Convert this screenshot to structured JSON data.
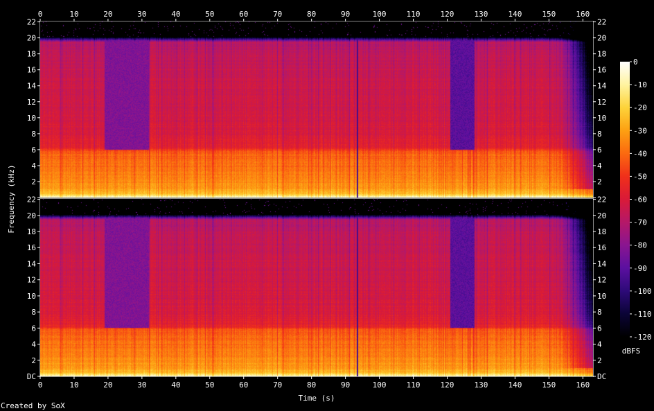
{
  "chart_data": {
    "type": "heatmap",
    "channels": 2,
    "x_axis": {
      "label": "Time (s)",
      "range": [
        0,
        163
      ],
      "ticks": [
        0,
        10,
        20,
        30,
        40,
        50,
        60,
        70,
        80,
        90,
        100,
        110,
        120,
        130,
        140,
        150,
        160
      ]
    },
    "y_axis": {
      "label": "Frequency (kHz)",
      "range": [
        0,
        22.05
      ],
      "ticks": [
        0,
        2,
        4,
        6,
        8,
        10,
        12,
        14,
        16,
        18,
        20,
        22
      ],
      "tick_labels": [
        "DC",
        "2",
        "4",
        "6",
        "8",
        "10",
        "12",
        "14",
        "16",
        "18",
        "20",
        "22"
      ]
    },
    "colorbar": {
      "label": "dBFS",
      "range": [
        -120,
        0
      ],
      "ticks": [
        0,
        -10,
        -20,
        -30,
        -40,
        -50,
        -60,
        -70,
        -80,
        -90,
        -100,
        -110,
        -120
      ],
      "colors": [
        "#000000",
        "#0b0436",
        "#2d0a78",
        "#5b10a0",
        "#8a1590",
        "#b51868",
        "#d91a38",
        "#f0301a",
        "#fb6a10",
        "#fda012",
        "#fdd33a",
        "#fff3a0",
        "#ffffff"
      ]
    },
    "spectrum_profile": {
      "freq_khz": [
        0,
        0.5,
        1,
        2,
        3,
        4,
        5,
        5.8,
        6.2,
        8,
        10,
        12,
        14,
        16,
        18,
        19.5,
        20.1,
        22
      ],
      "level_dbfs": [
        -5,
        -25,
        -30,
        -34,
        -37,
        -39,
        -41,
        -43,
        -55,
        -60,
        -62,
        -63,
        -64,
        -65,
        -67,
        -70,
        -120,
        -120
      ]
    },
    "quiet_regions": [
      {
        "start_s": 19,
        "end_s": 32,
        "level_dbfs": -82
      },
      {
        "start_s": 121,
        "end_s": 128,
        "level_dbfs": -90
      }
    ],
    "dropouts": [
      {
        "time_s": 93.5,
        "level_dbfs": -95
      }
    ],
    "fade_out": {
      "start_s": 150,
      "end_s": 162
    }
  },
  "footer": {
    "credit": "Created by SoX"
  }
}
